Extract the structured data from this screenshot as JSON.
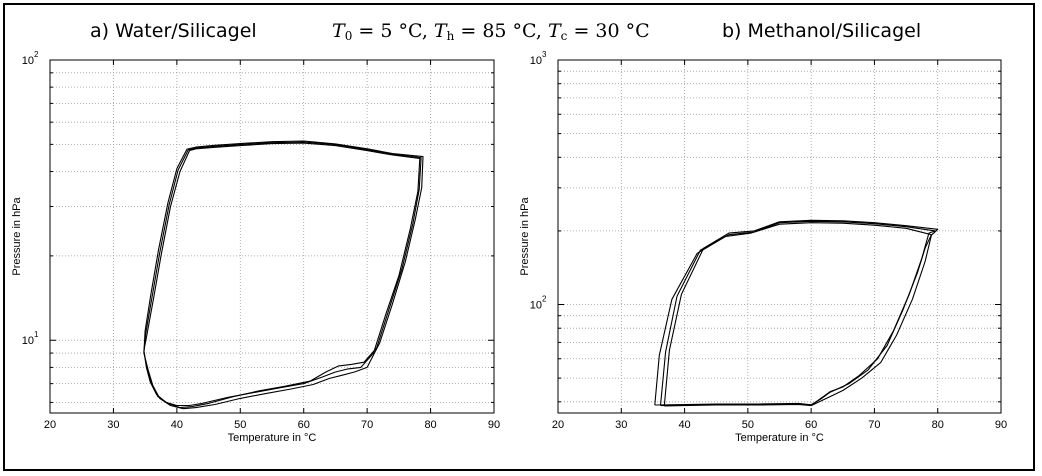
{
  "header": {
    "left": "a) Water/Silicagel",
    "middle": {
      "t0_symbol": "T",
      "t0_sub": "0",
      "t0_value": " = 5 °C, ",
      "th_symbol": "T",
      "th_sub": "h",
      "th_value": " = 85 °C, ",
      "tc_symbol": "T",
      "tc_sub": "c",
      "tc_value": " = 30 °C"
    },
    "right": "b) Methanol/Silicagel"
  },
  "chart_data": [
    {
      "type": "line",
      "title": "a) Water/Silicagel",
      "xlabel": "Temperature in °C",
      "ylabel": "Pressure in hPa",
      "xlim": [
        20,
        90
      ],
      "ylim": [
        5.5,
        100
      ],
      "yscale": "log",
      "xticks": [
        20,
        30,
        40,
        50,
        60,
        70,
        80,
        90
      ],
      "yticks_major": [
        {
          "value": 10,
          "base": "10",
          "exp": "1"
        },
        {
          "value": 100,
          "base": "10",
          "exp": "2"
        }
      ],
      "grid": true,
      "series": [
        {
          "values": [
            [
              34.8,
              9.2
            ],
            [
              35.2,
              8.0
            ],
            [
              35.8,
              7.1
            ],
            [
              36.8,
              6.4
            ],
            [
              38.3,
              6.0
            ],
            [
              40,
              5.85
            ],
            [
              42,
              5.85
            ],
            [
              44,
              5.95
            ],
            [
              48,
              6.25
            ],
            [
              52,
              6.5
            ],
            [
              56,
              6.75
            ],
            [
              60,
              7.0
            ],
            [
              63,
              7.4
            ],
            [
              65,
              7.7
            ],
            [
              67,
              7.9
            ],
            [
              69,
              8.0
            ],
            [
              71,
              9.0
            ],
            [
              73,
              12.5
            ],
            [
              75,
              17
            ],
            [
              76.8,
              25
            ],
            [
              78,
              34
            ],
            [
              78.3,
              44.5
            ],
            [
              74,
              45.8
            ],
            [
              70,
              47.5
            ],
            [
              65,
              49.5
            ],
            [
              60,
              50.5
            ],
            [
              55,
              50.3
            ],
            [
              50,
              49.5
            ],
            [
              46,
              48.8
            ],
            [
              43,
              48.2
            ],
            [
              42,
              47.5
            ],
            [
              40.5,
              40
            ],
            [
              39,
              30
            ],
            [
              37.5,
              20
            ],
            [
              36.3,
              14
            ],
            [
              35.3,
              10.5
            ],
            [
              34.8,
              9.2
            ]
          ]
        },
        {
          "values": [
            [
              34.8,
              9.1
            ],
            [
              35.3,
              7.9
            ],
            [
              36,
              7.0
            ],
            [
              37,
              6.3
            ],
            [
              38.6,
              5.95
            ],
            [
              40.5,
              5.75
            ],
            [
              42.5,
              5.8
            ],
            [
              45,
              5.95
            ],
            [
              49,
              6.3
            ],
            [
              53,
              6.6
            ],
            [
              57,
              6.85
            ],
            [
              61,
              7.15
            ],
            [
              63.5,
              7.7
            ],
            [
              65.5,
              8.1
            ],
            [
              67.5,
              8.2
            ],
            [
              69.5,
              8.35
            ],
            [
              71.5,
              9.4
            ],
            [
              73.5,
              13
            ],
            [
              75.5,
              18
            ],
            [
              77.2,
              26
            ],
            [
              78.2,
              34.5
            ],
            [
              78.5,
              44.8
            ],
            [
              74,
              46.1
            ],
            [
              70,
              47.9
            ],
            [
              65,
              49.9
            ],
            [
              60,
              51
            ],
            [
              55,
              50.7
            ],
            [
              50,
              49.9
            ],
            [
              46,
              49.2
            ],
            [
              43,
              48.5
            ],
            [
              41.8,
              47.8
            ],
            [
              40.2,
              40.5
            ],
            [
              38.8,
              30.5
            ],
            [
              37.3,
              20.5
            ],
            [
              36.1,
              14.3
            ],
            [
              35.1,
              10.6
            ],
            [
              34.8,
              9.1
            ]
          ]
        },
        {
          "values": [
            [
              34.8,
              9.0
            ],
            [
              35.5,
              7.8
            ],
            [
              36.2,
              6.9
            ],
            [
              37.3,
              6.2
            ],
            [
              39,
              5.85
            ],
            [
              41,
              5.7
            ],
            [
              43,
              5.75
            ],
            [
              46,
              5.9
            ],
            [
              50,
              6.2
            ],
            [
              54,
              6.45
            ],
            [
              58,
              6.7
            ],
            [
              61.5,
              6.95
            ],
            [
              64,
              7.3
            ],
            [
              66,
              7.5
            ],
            [
              68,
              7.7
            ],
            [
              70,
              8.0
            ],
            [
              72,
              9.8
            ],
            [
              74,
              13.5
            ],
            [
              76,
              19
            ],
            [
              77.6,
              27
            ],
            [
              78.6,
              35
            ],
            [
              78.8,
              45.2
            ],
            [
              74,
              46.4
            ],
            [
              70,
              48.2
            ],
            [
              65,
              50.2
            ],
            [
              60,
              51.4
            ],
            [
              55,
              51.1
            ],
            [
              50,
              50.3
            ],
            [
              46,
              49.6
            ],
            [
              43,
              48.9
            ],
            [
              41.6,
              48.1
            ],
            [
              40,
              41
            ],
            [
              38.6,
              31
            ],
            [
              37.1,
              21
            ],
            [
              35.9,
              14.6
            ],
            [
              35,
              10.8
            ],
            [
              34.8,
              9.0
            ]
          ]
        }
      ]
    },
    {
      "type": "line",
      "title": "b) Methanol/Silicagel",
      "xlabel": "Temperature in °C",
      "ylabel": "Pressure in hPa",
      "xlim": [
        20,
        90
      ],
      "ylim": [
        36,
        1000
      ],
      "yscale": "log",
      "xticks": [
        20,
        30,
        40,
        50,
        60,
        70,
        80,
        90
      ],
      "yticks_major": [
        {
          "value": 100,
          "base": "10",
          "exp": "2"
        },
        {
          "value": 1000,
          "base": "10",
          "exp": "3"
        }
      ],
      "grid": true,
      "series": [
        {
          "values": [
            [
              36.8,
              38.5
            ],
            [
              45,
              38.8
            ],
            [
              52,
              38.8
            ],
            [
              58,
              39
            ],
            [
              60,
              38.6
            ],
            [
              63,
              42
            ],
            [
              65,
              44.5
            ],
            [
              68,
              50
            ],
            [
              71,
              58
            ],
            [
              73.5,
              75
            ],
            [
              76,
              105
            ],
            [
              78,
              150
            ],
            [
              79,
              192
            ],
            [
              80,
              203
            ],
            [
              75,
              210
            ],
            [
              70,
              216
            ],
            [
              65,
              220
            ],
            [
              60,
              221
            ],
            [
              55,
              218
            ],
            [
              51,
              200
            ],
            [
              47,
              196
            ],
            [
              43,
              170
            ],
            [
              39.5,
              110
            ],
            [
              37.6,
              65
            ],
            [
              36.8,
              38.5
            ]
          ]
        },
        {
          "values": [
            [
              36.2,
              38.6
            ],
            [
              45,
              39
            ],
            [
              52,
              39
            ],
            [
              58,
              39.2
            ],
            [
              60,
              38.7
            ],
            [
              63,
              44
            ],
            [
              65,
              46
            ],
            [
              67.5,
              51
            ],
            [
              70.5,
              60
            ],
            [
              73,
              78
            ],
            [
              75.5,
              110
            ],
            [
              77.5,
              155
            ],
            [
              78.6,
              196
            ],
            [
              79.6,
              200
            ],
            [
              75,
              208
            ],
            [
              70,
              214
            ],
            [
              65,
              218
            ],
            [
              60,
              219
            ],
            [
              55,
              216
            ],
            [
              51,
              198
            ],
            [
              47,
              193
            ],
            [
              42.5,
              167
            ],
            [
              38.8,
              108
            ],
            [
              37,
              64
            ],
            [
              36.2,
              38.6
            ]
          ]
        },
        {
          "values": [
            [
              35.3,
              38.8
            ],
            [
              45,
              39.2
            ],
            [
              52,
              39.2
            ],
            [
              58,
              39.4
            ],
            [
              60,
              38.9
            ],
            [
              61.5,
              41
            ],
            [
              63,
              43.8
            ],
            [
              66,
              47.5
            ],
            [
              69,
              54
            ],
            [
              72,
              68
            ],
            [
              74.5,
              95
            ],
            [
              76.8,
              135
            ],
            [
              78,
              170
            ],
            [
              79,
              193
            ],
            [
              75,
              205
            ],
            [
              70,
              211
            ],
            [
              65,
              215
            ],
            [
              60,
              216
            ],
            [
              55,
              213
            ],
            [
              50.5,
              196
            ],
            [
              46.5,
              190
            ],
            [
              42,
              162
            ],
            [
              38,
              105
            ],
            [
              36,
              62
            ],
            [
              35.3,
              38.8
            ]
          ]
        }
      ]
    }
  ]
}
